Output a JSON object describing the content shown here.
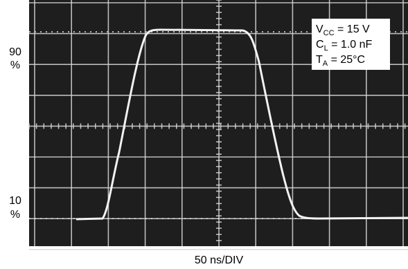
{
  "scope_labels": {
    "upper_level": "90",
    "upper_unit": "%",
    "lower_level": "10",
    "lower_unit": "%",
    "time_scale": "50 ns/DIV"
  },
  "conditions": [
    {
      "symbol": "V",
      "subscript": "CC",
      "rest": " = 15 V"
    },
    {
      "symbol": "C",
      "subscript": "L",
      "rest": " = 1.0 nF"
    },
    {
      "symbol": "T",
      "subscript": "A",
      "rest": " = 25°C"
    }
  ]
}
